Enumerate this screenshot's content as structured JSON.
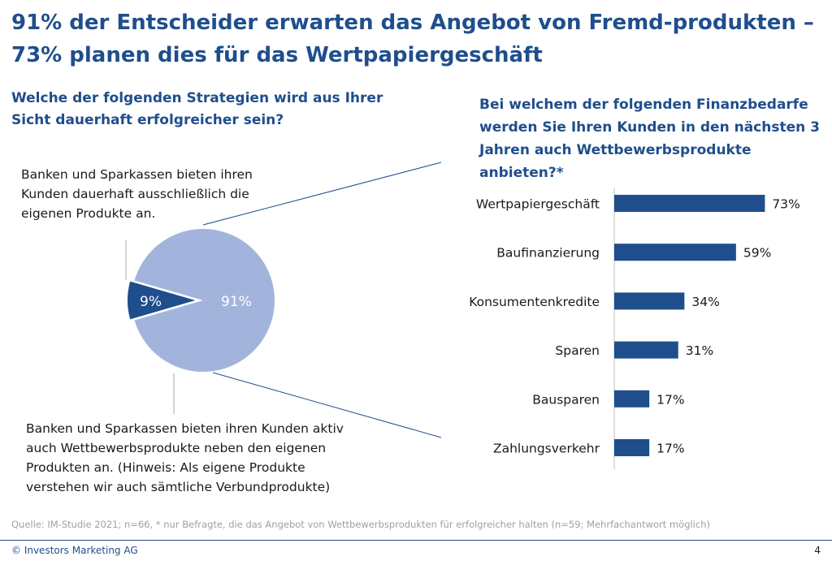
{
  "slide": {
    "title": "91% der Entscheider erwarten das Angebot von Fremd-produkten – 73% planen dies für das Wertpapiergeschäft",
    "question_left": "Welche der folgenden Strategien wird aus Ihrer Sicht dauerhaft erfolgreicher sein?",
    "question_right": "Bei welchem der folgenden Finanzbedarfe werden Sie Ihren Kunden in den nächsten 3 Jahren auch Wettbewerbsprodukte anbieten?*",
    "source": "Quelle: IM-Studie 2021; n=66, * nur Befragte, die das Angebot von Wettbewerbsprodukten für erfolgreicher halten (n=59; Mehrfachantwort möglich)",
    "copyright": "© Investors Marketing AG",
    "page_number": "4"
  },
  "colors": {
    "title": "#1f4e8c",
    "pie_large": "#a3b4dc",
    "pie_small": "#1f4e8c",
    "bar": "#1f4e8c",
    "connector": "#1f4e8c"
  },
  "chart_data": [
    {
      "type": "pie",
      "slices": [
        {
          "label": "Banken und Sparkassen bieten ihren Kunden dauerhaft ausschließlich die eigenen Produkte an.",
          "value": 9,
          "value_label": "9%",
          "color": "#1f4e8c"
        },
        {
          "label": "Banken und Sparkassen bieten ihren Kunden aktiv auch Wettbewerbsprodukte neben den eigenen Produkten an. (Hinweis: Als eigene Produkte verstehen wir auch sämtliche Verbundprodukte)",
          "value": 91,
          "value_label": "91%",
          "color": "#a3b4dc"
        }
      ]
    },
    {
      "type": "bar",
      "orientation": "horizontal",
      "categories": [
        "Wertpapiergeschäft",
        "Baufinanzierung",
        "Konsumentenkredite",
        "Sparen",
        "Bausparen",
        "Zahlungsverkehr"
      ],
      "values": [
        73,
        59,
        34,
        31,
        17,
        17
      ],
      "value_labels": [
        "73%",
        "59%",
        "34%",
        "31%",
        "17%",
        "17%"
      ],
      "xlim": [
        0,
        100
      ]
    }
  ]
}
